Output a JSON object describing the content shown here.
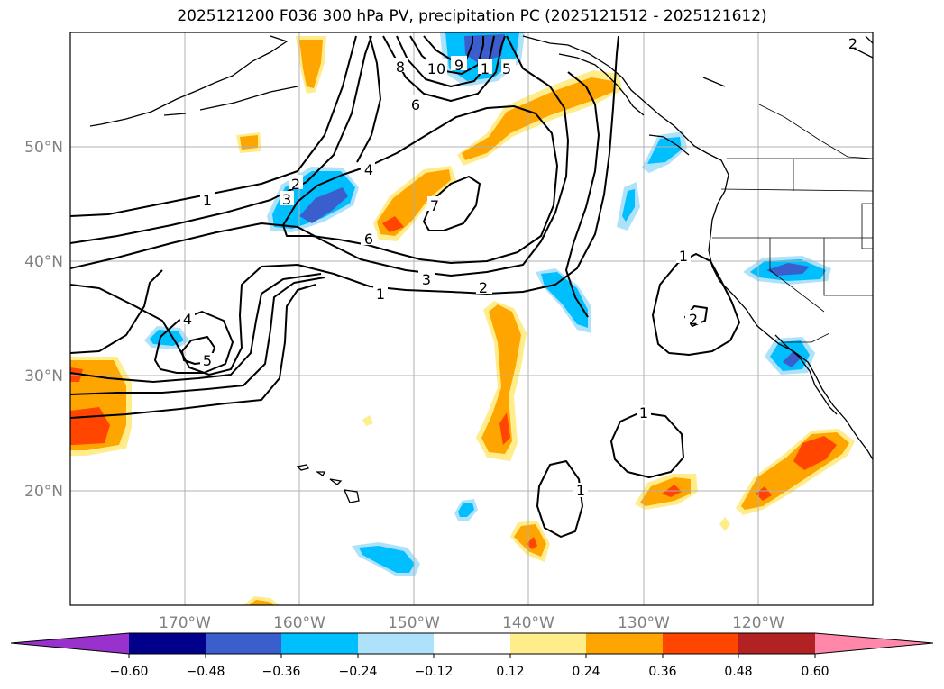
{
  "title": "2025121200 F036 300 hPa PV, precipitation PC (2025121512 - 2025121612)",
  "map": {
    "lat_ticks": [
      "50°N",
      "40°N",
      "30°N",
      "20°N"
    ],
    "lon_ticks": [
      "170°W",
      "160°W",
      "150°W",
      "140°W",
      "130°W",
      "120°W"
    ],
    "gridline_color": "#b0b0b0",
    "tick_label_color": "#808080",
    "contour_labels": [
      "1",
      "2",
      "3",
      "4",
      "5",
      "6",
      "7",
      "8",
      "9",
      "10",
      "1",
      "2",
      "3",
      "6",
      "4",
      "5",
      "1",
      "2",
      "1",
      "1",
      "1",
      "2",
      "1"
    ]
  },
  "colorbar": {
    "colors": [
      "#9932cc",
      "#00008b",
      "#3a5fcd",
      "#00bfff",
      "#aee2fa",
      "#ffffff",
      "#ffec8b",
      "#ffa500",
      "#ff4500",
      "#b22222",
      "#ff88aa"
    ],
    "tick_labels": [
      "−0.60",
      "−0.48",
      "−0.36",
      "−0.24",
      "−0.12",
      "0.12",
      "0.24",
      "0.36",
      "0.48",
      "0.60"
    ]
  }
}
